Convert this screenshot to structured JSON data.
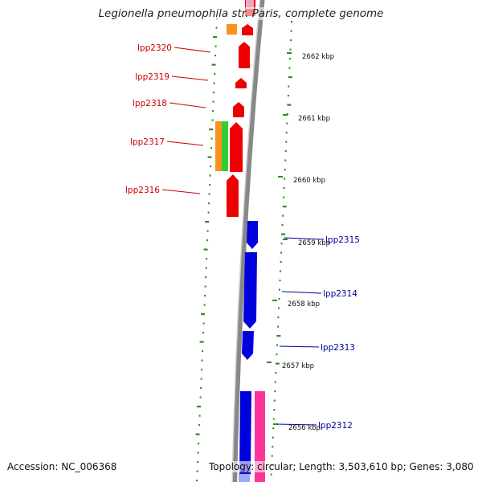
{
  "title": "Legionella pneumophila str. Paris, complete genome",
  "accession": "Accession: NC_006368",
  "topology": "Topology: circular; Length: 3,503,610 bp; Genes: 3,080",
  "colors": {
    "backbone": "#888888",
    "forward_gene": "#ee0000",
    "reverse_gene": "#0000dd",
    "cog_orange": "#f7931e",
    "cog_green": "#33cc33",
    "cog_pink": "#ff3399",
    "gc_skew": "#2e8b22",
    "forward_label": "#cc0000",
    "reverse_label": "#000099"
  },
  "position_labels": [
    "2662 kbp",
    "2661 kbp",
    "2660 kbp",
    "2659 kbp",
    "2658 kbp",
    "2657 kbp",
    "2656 kbp"
  ],
  "forward_genes": [
    "lpp2320",
    "lpp2319",
    "lpp2318",
    "lpp2317",
    "lpp2316"
  ],
  "reverse_genes": [
    "lpp2315",
    "lpp2314",
    "lpp2313",
    "lpp2312"
  ]
}
